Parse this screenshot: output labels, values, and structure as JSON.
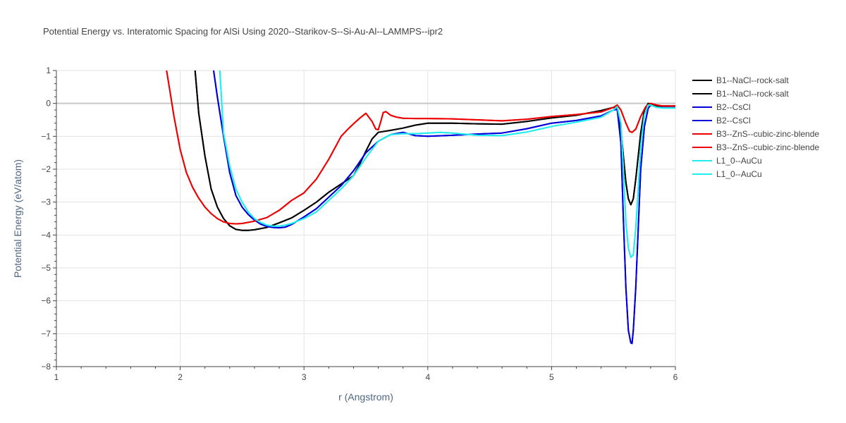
{
  "chart_data": {
    "type": "line",
    "title": "Potential Energy vs. Interatomic Spacing for AlSi Using 2020--Starikov-S--Si-Au-Al--LAMMPS--ipr2",
    "xlabel": "r (Angstrom)",
    "ylabel": "Potential Energy (eV/atom)",
    "xlim": [
      1,
      6
    ],
    "ylim": [
      -8,
      1
    ],
    "x_ticks": [
      "1",
      "2",
      "3",
      "4",
      "5",
      "6"
    ],
    "y_ticks": [
      "1",
      "0",
      "−1",
      "−2",
      "−3",
      "−4",
      "−5",
      "−6",
      "−7",
      "−8"
    ],
    "grid": true,
    "legend_position": "right",
    "series": [
      {
        "name": "B1--NaCl--rock-salt",
        "color": "#000000",
        "x": [
          2.12,
          2.15,
          2.2,
          2.25,
          2.3,
          2.35,
          2.4,
          2.45,
          2.5,
          2.55,
          2.6,
          2.7,
          2.8,
          2.9,
          3.0,
          3.1,
          3.2,
          3.3,
          3.4,
          3.45,
          3.5,
          3.55,
          3.6,
          3.7,
          3.8,
          3.9,
          4.0,
          4.2,
          4.4,
          4.6,
          4.8,
          5.0,
          5.2,
          5.4,
          5.5,
          5.53,
          5.56,
          5.58,
          5.6,
          5.62,
          5.64,
          5.66,
          5.68,
          5.7,
          5.72,
          5.75,
          5.78,
          5.8,
          5.85,
          5.9,
          6.0
        ],
        "y": [
          1.0,
          -0.3,
          -1.6,
          -2.6,
          -3.15,
          -3.5,
          -3.72,
          -3.83,
          -3.86,
          -3.86,
          -3.84,
          -3.77,
          -3.63,
          -3.48,
          -3.25,
          -3.0,
          -2.7,
          -2.45,
          -2.2,
          -1.85,
          -1.45,
          -1.08,
          -0.88,
          -0.82,
          -0.75,
          -0.66,
          -0.6,
          -0.6,
          -0.62,
          -0.63,
          -0.55,
          -0.44,
          -0.36,
          -0.22,
          -0.12,
          -0.18,
          -0.8,
          -1.6,
          -2.4,
          -2.9,
          -3.08,
          -2.9,
          -2.3,
          -1.6,
          -0.9,
          -0.2,
          0.0,
          -0.02,
          -0.08,
          -0.08,
          -0.08
        ]
      },
      {
        "name": "B1--NaCl--rock-salt",
        "color": "#000000",
        "x": [
          2.12,
          2.15,
          2.2,
          2.25,
          2.3,
          2.35,
          2.4,
          2.45,
          2.5,
          2.55,
          2.6,
          2.7,
          2.8,
          2.9,
          3.0,
          3.1,
          3.2,
          3.3,
          3.4,
          3.45,
          3.5,
          3.55,
          3.6,
          3.7,
          3.8,
          3.9,
          4.0,
          4.2,
          4.4,
          4.6,
          4.8,
          5.0,
          5.2,
          5.4,
          5.5,
          5.53,
          5.56,
          5.58,
          5.6,
          5.62,
          5.64,
          5.66,
          5.68,
          5.7,
          5.72,
          5.75,
          5.78,
          5.8,
          5.85,
          5.9,
          6.0
        ],
        "y": [
          1.0,
          -0.3,
          -1.6,
          -2.6,
          -3.15,
          -3.5,
          -3.72,
          -3.83,
          -3.86,
          -3.86,
          -3.84,
          -3.77,
          -3.63,
          -3.48,
          -3.25,
          -3.0,
          -2.7,
          -2.45,
          -2.2,
          -1.85,
          -1.45,
          -1.08,
          -0.88,
          -0.82,
          -0.75,
          -0.66,
          -0.6,
          -0.6,
          -0.62,
          -0.63,
          -0.55,
          -0.44,
          -0.36,
          -0.22,
          -0.12,
          -0.18,
          -0.8,
          -1.6,
          -2.4,
          -2.9,
          -3.08,
          -2.9,
          -2.3,
          -1.6,
          -0.9,
          -0.2,
          0.0,
          -0.02,
          -0.08,
          -0.08,
          -0.08
        ]
      },
      {
        "name": "B2--CsCl",
        "color": "#0000dd",
        "x": [
          2.27,
          2.3,
          2.35,
          2.4,
          2.45,
          2.5,
          2.55,
          2.6,
          2.65,
          2.7,
          2.75,
          2.8,
          2.85,
          2.9,
          3.0,
          3.1,
          3.2,
          3.3,
          3.4,
          3.5,
          3.6,
          3.7,
          3.8,
          3.9,
          4.0,
          4.2,
          4.4,
          4.6,
          4.8,
          5.0,
          5.2,
          5.4,
          5.5,
          5.53,
          5.56,
          5.58,
          5.6,
          5.62,
          5.64,
          5.65,
          5.66,
          5.68,
          5.7,
          5.72,
          5.75,
          5.78,
          5.8,
          5.85,
          5.9,
          6.0
        ],
        "y": [
          1.0,
          0.2,
          -1.0,
          -2.1,
          -2.8,
          -3.15,
          -3.38,
          -3.55,
          -3.67,
          -3.74,
          -3.77,
          -3.78,
          -3.76,
          -3.68,
          -3.45,
          -3.2,
          -2.85,
          -2.5,
          -2.05,
          -1.5,
          -1.15,
          -0.95,
          -0.88,
          -0.98,
          -1.0,
          -0.97,
          -0.93,
          -0.9,
          -0.77,
          -0.6,
          -0.52,
          -0.38,
          -0.2,
          -0.18,
          -1.2,
          -3.5,
          -5.6,
          -6.9,
          -7.28,
          -7.3,
          -6.9,
          -5.6,
          -3.8,
          -2.0,
          -0.7,
          -0.15,
          -0.05,
          -0.12,
          -0.13,
          -0.13
        ]
      },
      {
        "name": "B2--CsCl",
        "color": "#0000dd",
        "x": [
          2.27,
          2.3,
          2.35,
          2.4,
          2.45,
          2.5,
          2.55,
          2.6,
          2.65,
          2.7,
          2.75,
          2.8,
          2.85,
          2.9,
          3.0,
          3.1,
          3.2,
          3.3,
          3.4,
          3.5,
          3.6,
          3.7,
          3.8,
          3.9,
          4.0,
          4.2,
          4.4,
          4.6,
          4.8,
          5.0,
          5.2,
          5.4,
          5.5,
          5.53,
          5.56,
          5.58,
          5.6,
          5.62,
          5.64,
          5.65,
          5.66,
          5.68,
          5.7,
          5.72,
          5.75,
          5.78,
          5.8,
          5.85,
          5.9,
          6.0
        ],
        "y": [
          1.0,
          0.2,
          -1.0,
          -2.1,
          -2.8,
          -3.15,
          -3.38,
          -3.55,
          -3.67,
          -3.74,
          -3.77,
          -3.78,
          -3.76,
          -3.68,
          -3.45,
          -3.2,
          -2.85,
          -2.5,
          -2.05,
          -1.5,
          -1.15,
          -0.95,
          -0.88,
          -0.98,
          -1.0,
          -0.97,
          -0.93,
          -0.9,
          -0.77,
          -0.6,
          -0.52,
          -0.38,
          -0.2,
          -0.18,
          -1.2,
          -3.5,
          -5.6,
          -6.9,
          -7.28,
          -7.3,
          -6.9,
          -5.6,
          -3.8,
          -2.0,
          -0.7,
          -0.15,
          -0.05,
          -0.12,
          -0.13,
          -0.13
        ]
      },
      {
        "name": "B3--ZnS--cubic-zinc-blende",
        "color": "#ee0000",
        "x": [
          1.89,
          1.92,
          1.95,
          2.0,
          2.05,
          2.1,
          2.15,
          2.2,
          2.25,
          2.3,
          2.35,
          2.4,
          2.45,
          2.5,
          2.6,
          2.7,
          2.8,
          2.9,
          3.0,
          3.1,
          3.2,
          3.3,
          3.35,
          3.4,
          3.45,
          3.5,
          3.55,
          3.58,
          3.6,
          3.62,
          3.64,
          3.66,
          3.68,
          3.7,
          3.75,
          3.8,
          3.9,
          4.0,
          4.2,
          4.4,
          4.6,
          4.8,
          5.0,
          5.2,
          5.4,
          5.5,
          5.53,
          5.56,
          5.6,
          5.63,
          5.65,
          5.68,
          5.72,
          5.76,
          5.8,
          5.85,
          5.9,
          6.0
        ],
        "y": [
          1.0,
          0.3,
          -0.4,
          -1.4,
          -2.1,
          -2.55,
          -2.88,
          -3.15,
          -3.35,
          -3.5,
          -3.6,
          -3.65,
          -3.66,
          -3.65,
          -3.58,
          -3.47,
          -3.25,
          -2.95,
          -2.72,
          -2.3,
          -1.7,
          -1.0,
          -0.8,
          -0.62,
          -0.45,
          -0.3,
          -0.55,
          -0.78,
          -0.8,
          -0.55,
          -0.28,
          -0.25,
          -0.3,
          -0.36,
          -0.42,
          -0.45,
          -0.46,
          -0.46,
          -0.47,
          -0.5,
          -0.53,
          -0.48,
          -0.4,
          -0.34,
          -0.26,
          -0.12,
          -0.05,
          -0.2,
          -0.6,
          -0.85,
          -0.88,
          -0.78,
          -0.4,
          -0.1,
          0.0,
          -0.05,
          -0.08,
          -0.08
        ]
      },
      {
        "name": "B3--ZnS--cubic-zinc-blende",
        "color": "#ee0000",
        "x": [
          1.89,
          1.92,
          1.95,
          2.0,
          2.05,
          2.1,
          2.15,
          2.2,
          2.25,
          2.3,
          2.35,
          2.4,
          2.45,
          2.5,
          2.6,
          2.7,
          2.8,
          2.9,
          3.0,
          3.1,
          3.2,
          3.3,
          3.35,
          3.4,
          3.45,
          3.5,
          3.55,
          3.58,
          3.6,
          3.62,
          3.64,
          3.66,
          3.68,
          3.7,
          3.75,
          3.8,
          3.9,
          4.0,
          4.2,
          4.4,
          4.6,
          4.8,
          5.0,
          5.2,
          5.4,
          5.5,
          5.53,
          5.56,
          5.6,
          5.63,
          5.65,
          5.68,
          5.72,
          5.76,
          5.8,
          5.85,
          5.9,
          6.0
        ],
        "y": [
          1.0,
          0.3,
          -0.4,
          -1.4,
          -2.1,
          -2.55,
          -2.88,
          -3.15,
          -3.35,
          -3.5,
          -3.6,
          -3.65,
          -3.66,
          -3.65,
          -3.58,
          -3.47,
          -3.25,
          -2.95,
          -2.72,
          -2.3,
          -1.7,
          -1.0,
          -0.8,
          -0.62,
          -0.45,
          -0.3,
          -0.55,
          -0.78,
          -0.8,
          -0.55,
          -0.28,
          -0.25,
          -0.3,
          -0.36,
          -0.42,
          -0.45,
          -0.46,
          -0.46,
          -0.47,
          -0.5,
          -0.53,
          -0.48,
          -0.4,
          -0.34,
          -0.26,
          -0.12,
          -0.05,
          -0.2,
          -0.6,
          -0.85,
          -0.88,
          -0.78,
          -0.4,
          -0.1,
          0.0,
          -0.05,
          -0.08,
          -0.08
        ]
      },
      {
        "name": "L1_0--AuCu",
        "color": "#22eeee",
        "x": [
          2.32,
          2.35,
          2.4,
          2.45,
          2.5,
          2.55,
          2.6,
          2.65,
          2.7,
          2.75,
          2.8,
          2.85,
          2.9,
          3.0,
          3.1,
          3.2,
          3.3,
          3.4,
          3.5,
          3.6,
          3.7,
          3.8,
          3.9,
          4.0,
          4.1,
          4.2,
          4.4,
          4.6,
          4.8,
          5.0,
          5.2,
          5.4,
          5.5,
          5.53,
          5.56,
          5.58,
          5.6,
          5.62,
          5.64,
          5.66,
          5.68,
          5.7,
          5.72,
          5.75,
          5.78,
          5.8,
          5.85,
          5.9,
          6.0
        ],
        "y": [
          1.0,
          -0.9,
          -1.9,
          -2.6,
          -3.0,
          -3.3,
          -3.5,
          -3.62,
          -3.7,
          -3.73,
          -3.73,
          -3.7,
          -3.65,
          -3.5,
          -3.3,
          -2.95,
          -2.6,
          -2.2,
          -1.65,
          -1.15,
          -0.95,
          -0.92,
          -0.92,
          -0.9,
          -0.88,
          -0.9,
          -0.97,
          -0.98,
          -0.87,
          -0.7,
          -0.57,
          -0.42,
          -0.2,
          -0.1,
          -0.6,
          -2.0,
          -3.6,
          -4.4,
          -4.68,
          -4.6,
          -3.8,
          -2.6,
          -1.3,
          -0.35,
          -0.05,
          -0.05,
          -0.12,
          -0.14,
          -0.14
        ]
      },
      {
        "name": "L1_0--AuCu",
        "color": "#22eeee",
        "x": [
          2.32,
          2.35,
          2.4,
          2.45,
          2.5,
          2.55,
          2.6,
          2.65,
          2.7,
          2.75,
          2.8,
          2.85,
          2.9,
          3.0,
          3.1,
          3.2,
          3.3,
          3.4,
          3.5,
          3.6,
          3.7,
          3.8,
          3.9,
          4.0,
          4.1,
          4.2,
          4.4,
          4.6,
          4.8,
          5.0,
          5.2,
          5.4,
          5.5,
          5.53,
          5.56,
          5.58,
          5.6,
          5.62,
          5.64,
          5.66,
          5.68,
          5.7,
          5.72,
          5.75,
          5.78,
          5.8,
          5.85,
          5.9,
          6.0
        ],
        "y": [
          1.0,
          -0.9,
          -1.9,
          -2.6,
          -3.0,
          -3.3,
          -3.5,
          -3.62,
          -3.7,
          -3.73,
          -3.73,
          -3.7,
          -3.65,
          -3.5,
          -3.3,
          -2.95,
          -2.6,
          -2.2,
          -1.65,
          -1.15,
          -0.95,
          -0.92,
          -0.92,
          -0.9,
          -0.88,
          -0.9,
          -0.97,
          -0.98,
          -0.87,
          -0.7,
          -0.57,
          -0.42,
          -0.2,
          -0.1,
          -0.6,
          -2.0,
          -3.6,
          -4.4,
          -4.68,
          -4.6,
          -3.8,
          -2.6,
          -1.3,
          -0.35,
          -0.05,
          -0.05,
          -0.12,
          -0.14,
          -0.14
        ]
      }
    ]
  }
}
